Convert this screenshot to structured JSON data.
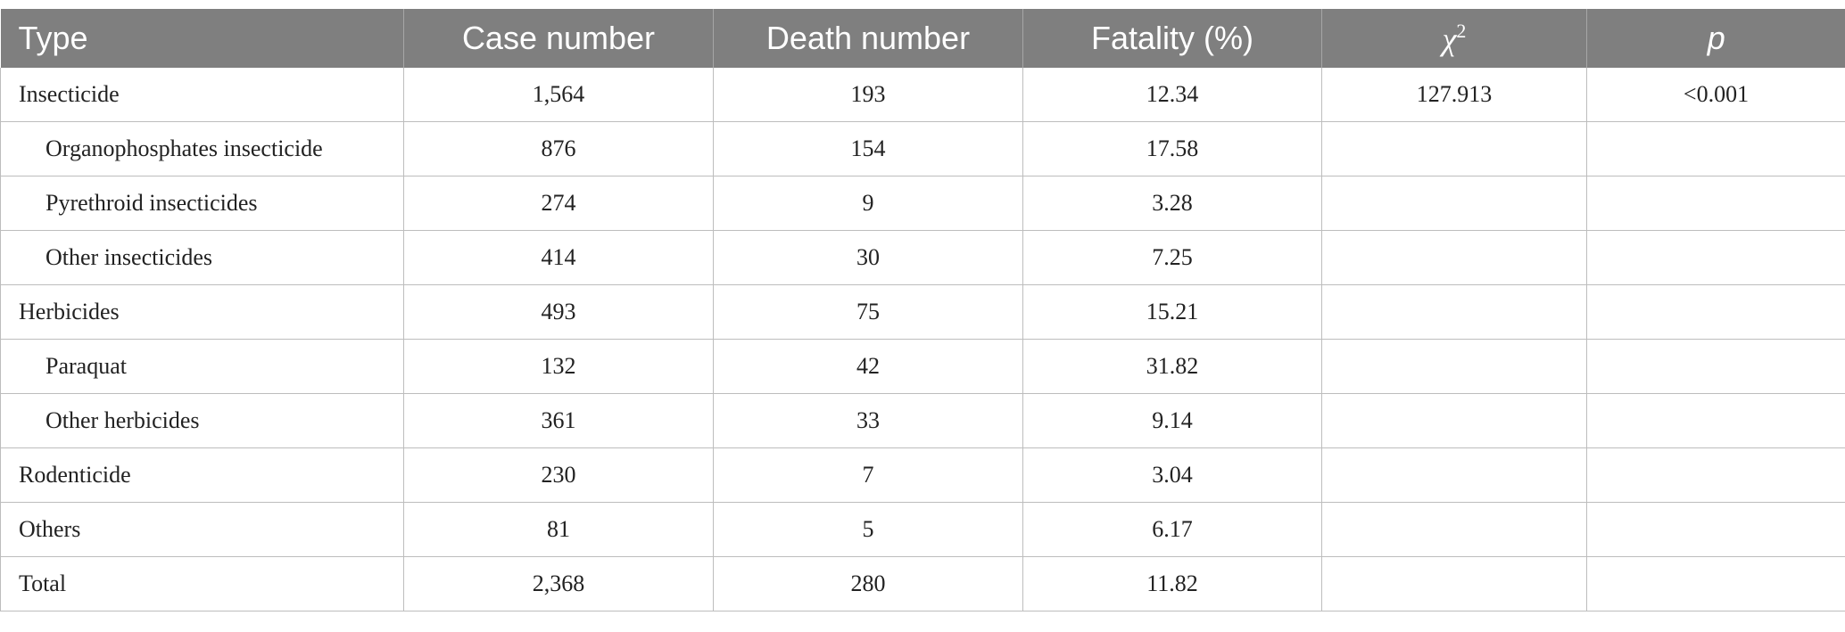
{
  "table": {
    "headers": {
      "type": "Type",
      "case_number": "Case number",
      "death_number": "Death number",
      "fatality": "Fatality (%)",
      "chi_symbol": "χ",
      "chi_superscript": "2",
      "p": "p"
    },
    "rows": [
      {
        "type": "Insecticide",
        "case_number": "1,564",
        "death_number": "193",
        "fatality": "12.34",
        "chi2": "127.913",
        "p": "<0.001"
      },
      {
        "type": "Organophosphates insecticide",
        "case_number": "876",
        "death_number": "154",
        "fatality": "17.58",
        "chi2": "",
        "p": ""
      },
      {
        "type": "Pyrethroid insecticides",
        "case_number": "274",
        "death_number": "9",
        "fatality": "3.28",
        "chi2": "",
        "p": ""
      },
      {
        "type": "Other insecticides",
        "case_number": "414",
        "death_number": "30",
        "fatality": "7.25",
        "chi2": "",
        "p": ""
      },
      {
        "type": "Herbicides",
        "case_number": "493",
        "death_number": "75",
        "fatality": "15.21",
        "chi2": "",
        "p": ""
      },
      {
        "type": "Paraquat",
        "case_number": "132",
        "death_number": "42",
        "fatality": "31.82",
        "chi2": "",
        "p": ""
      },
      {
        "type": "Other herbicides",
        "case_number": "361",
        "death_number": "33",
        "fatality": "9.14",
        "chi2": "",
        "p": ""
      },
      {
        "type": "Rodenticide",
        "case_number": "230",
        "death_number": "7",
        "fatality": "3.04",
        "chi2": "",
        "p": ""
      },
      {
        "type": "Others",
        "case_number": "81",
        "death_number": "5",
        "fatality": "6.17",
        "chi2": "",
        "p": ""
      },
      {
        "type": "Total",
        "case_number": "2,368",
        "death_number": "280",
        "fatality": "11.82",
        "chi2": "",
        "p": ""
      }
    ]
  },
  "colors": {
    "header_background": "#7f7f7f",
    "header_text": "#ffffff",
    "grid_lines": "#bdbdbd"
  }
}
